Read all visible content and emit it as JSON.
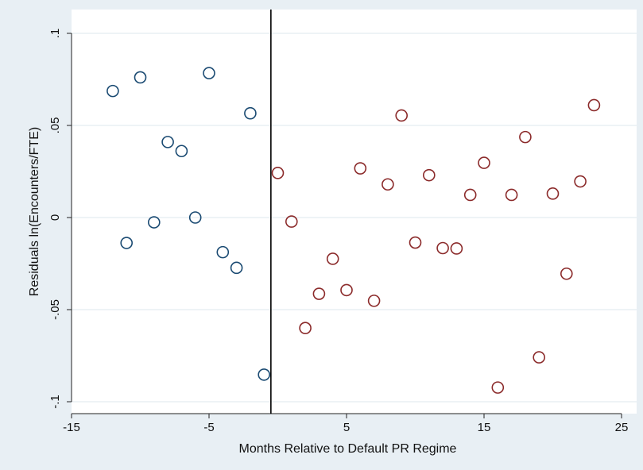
{
  "chart_data": {
    "type": "scatter",
    "title": "",
    "xlabel": "Months Relative to Default PR Regime",
    "ylabel": "Residuals ln(Encounters/FTE)",
    "xlim": [
      -15,
      25
    ],
    "ylim": [
      -0.1,
      0.1
    ],
    "x_ticks": [
      -15,
      -5,
      5,
      15,
      25
    ],
    "x_tick_labels": [
      "-15",
      "-5",
      "5",
      "15",
      "25"
    ],
    "y_ticks": [
      -0.1,
      -0.05,
      0,
      0.05,
      0.1
    ],
    "y_tick_labels": [
      "-.1",
      "-.05",
      "0",
      ".05",
      ".1"
    ],
    "grid": "horizontal",
    "legend": "none",
    "vertical_line_x": -0.5,
    "colors": {
      "background": "#e8eff4",
      "plot_area": "#ffffff",
      "grid": "#e4ecf1",
      "pre_series": "#1a4a72",
      "post_series": "#8b2a2a"
    },
    "series": [
      {
        "color": "#1a4a72",
        "points": [
          {
            "x": -12,
            "y": 0.0687
          },
          {
            "x": -11,
            "y": -0.0138
          },
          {
            "x": -10,
            "y": 0.0761
          },
          {
            "x": -9,
            "y": -0.0026
          },
          {
            "x": -8,
            "y": 0.041
          },
          {
            "x": -7,
            "y": 0.0361
          },
          {
            "x": -6,
            "y": 0.0
          },
          {
            "x": -5,
            "y": 0.0784
          },
          {
            "x": -4,
            "y": -0.0188
          },
          {
            "x": -3,
            "y": -0.0273
          },
          {
            "x": -2,
            "y": 0.0566
          },
          {
            "x": -1,
            "y": -0.0853
          }
        ]
      },
      {
        "color": "#8b2a2a",
        "points": [
          {
            "x": 0,
            "y": 0.0242
          },
          {
            "x": 1,
            "y": -0.0022
          },
          {
            "x": 2,
            "y": -0.06
          },
          {
            "x": 3,
            "y": -0.0414
          },
          {
            "x": 4,
            "y": -0.0224
          },
          {
            "x": 5,
            "y": -0.0394
          },
          {
            "x": 6,
            "y": 0.0267
          },
          {
            "x": 7,
            "y": -0.0452
          },
          {
            "x": 8,
            "y": 0.018
          },
          {
            "x": 9,
            "y": 0.0554
          },
          {
            "x": 10,
            "y": -0.0136
          },
          {
            "x": 11,
            "y": 0.023
          },
          {
            "x": 12,
            "y": -0.0166
          },
          {
            "x": 13,
            "y": -0.0168
          },
          {
            "x": 14,
            "y": 0.0123
          },
          {
            "x": 15,
            "y": 0.0297
          },
          {
            "x": 16,
            "y": -0.0923
          },
          {
            "x": 17,
            "y": 0.0123
          },
          {
            "x": 18,
            "y": 0.0437
          },
          {
            "x": 19,
            "y": -0.0759
          },
          {
            "x": 20,
            "y": 0.013
          },
          {
            "x": 21,
            "y": -0.0305
          },
          {
            "x": 22,
            "y": 0.0196
          },
          {
            "x": 23,
            "y": 0.061
          }
        ]
      }
    ]
  }
}
